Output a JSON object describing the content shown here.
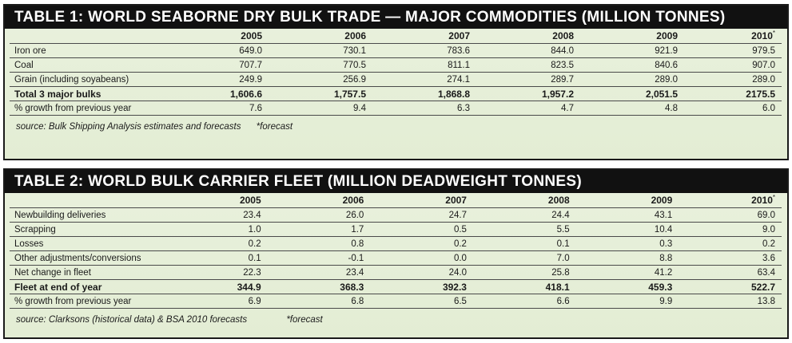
{
  "table1": {
    "title": "TABLE 1:  WORLD SEABORNE DRY BULK  TRADE — MAJOR COMMODITIES (MILLION TONNES)",
    "years": [
      "2005",
      "2006",
      "2007",
      "2008",
      "2009",
      "2010"
    ],
    "forecast_mark": "*",
    "rows": [
      {
        "label": "Iron ore",
        "values": [
          "649.0",
          "730.1",
          "783.6",
          "844.0",
          "921.9",
          "979.5"
        ],
        "bold": false
      },
      {
        "label": "Coal",
        "values": [
          "707.7",
          "770.5",
          "811.1",
          "823.5",
          "840.6",
          "907.0"
        ],
        "bold": false
      },
      {
        "label": "Grain (including soyabeans)",
        "values": [
          "249.9",
          "256.9",
          "274.1",
          "289.7",
          "289.0",
          "289.0"
        ],
        "bold": false
      },
      {
        "label": "Total 3 major bulks",
        "values": [
          "1,606.6",
          "1,757.5",
          "1,868.8",
          "1,957.2",
          "2,051.5",
          "2175.5"
        ],
        "bold": true
      },
      {
        "label": "% growth from previous year",
        "values": [
          "7.6",
          "9.4",
          "6.3",
          "4.7",
          "4.8",
          "6.0"
        ],
        "bold": false
      }
    ],
    "source": "source: Bulk Shipping Analysis estimates and forecasts",
    "forecast_note": "*forecast"
  },
  "table2": {
    "title": "TABLE 2:  WORLD BULK CARRIER FLEET (MILLION DEADWEIGHT TONNES)",
    "years": [
      "2005",
      "2006",
      "2007",
      "2008",
      "2009",
      "2010"
    ],
    "forecast_mark": "*",
    "rows": [
      {
        "label": "Newbuilding deliveries",
        "values": [
          "23.4",
          "26.0",
          "24.7",
          "24.4",
          "43.1",
          "69.0"
        ],
        "bold": false
      },
      {
        "label": "Scrapping",
        "values": [
          "1.0",
          "1.7",
          "0.5",
          "5.5",
          "10.4",
          "9.0"
        ],
        "bold": false
      },
      {
        "label": "Losses",
        "values": [
          "0.2",
          "0.8",
          "0.2",
          "0.1",
          "0.3",
          "0.2"
        ],
        "bold": false
      },
      {
        "label": "Other adjustments/conversions",
        "values": [
          "0.1",
          "-0.1",
          "0.0",
          "7.0",
          "8.8",
          "3.6"
        ],
        "bold": false
      },
      {
        "label": "Net change in fleet",
        "values": [
          "22.3",
          "23.4",
          "24.0",
          "25.8",
          "41.2",
          "63.4"
        ],
        "bold": false
      },
      {
        "label": "Fleet at end of year",
        "values": [
          "344.9",
          "368.3",
          "392.3",
          "418.1",
          "459.3",
          "522.7"
        ],
        "bold": true
      },
      {
        "label": "% growth from previous year",
        "values": [
          "6.9",
          "6.8",
          "6.5",
          "6.6",
          "9.9",
          "13.8"
        ],
        "bold": false
      }
    ],
    "source": "source: Clarksons (historical data) & BSA 2010 forecasts",
    "forecast_note": "*forecast"
  }
}
